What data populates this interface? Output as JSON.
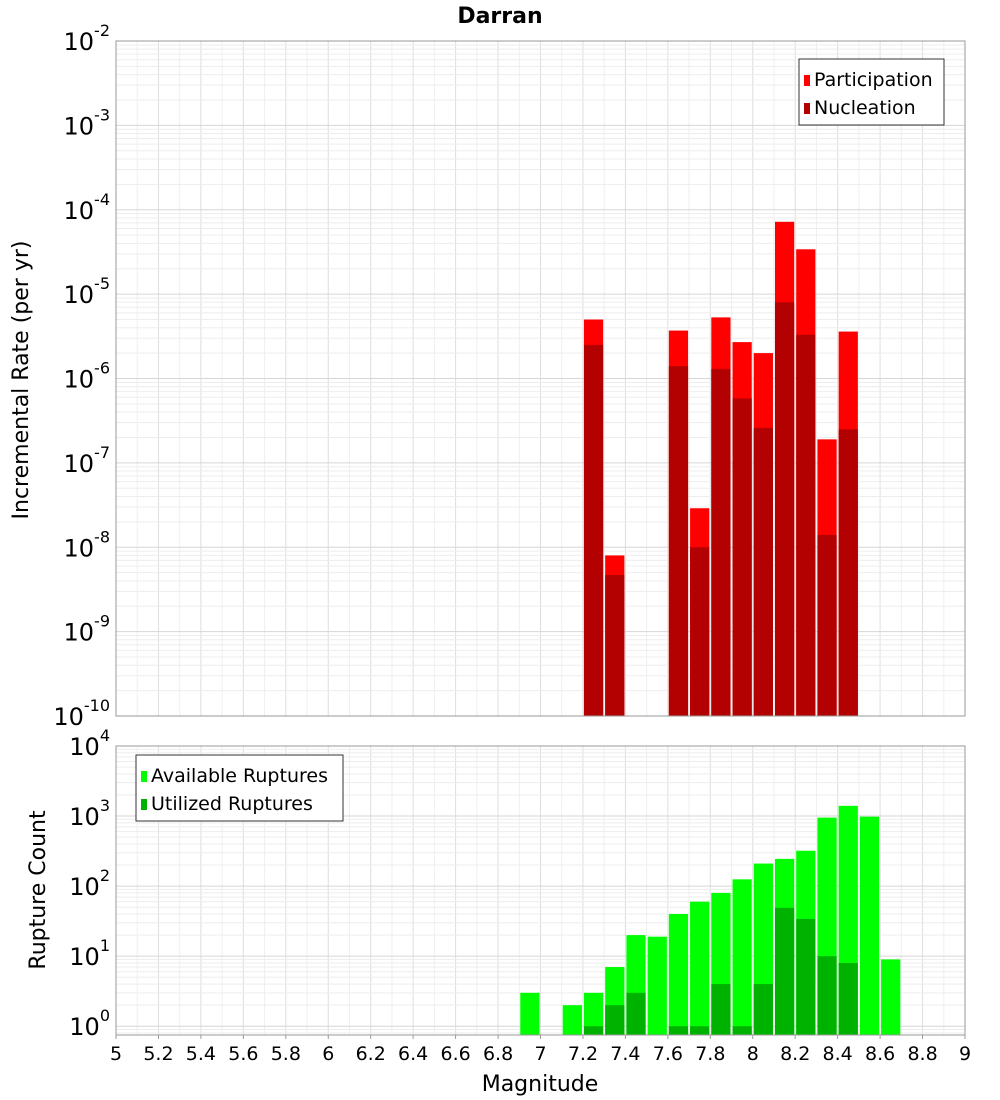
{
  "chart_data": [
    {
      "type": "bar",
      "title": "Darran",
      "xlabel": "",
      "ylabel": "Incremental Rate (per yr)",
      "xlim": [
        5,
        9
      ],
      "ylim": [
        1e-10,
        0.01
      ],
      "yscale": "log",
      "grid": true,
      "legend_position": "top-right",
      "bin_width": 0.1,
      "y_tick_exponents": [
        "-2",
        "-3",
        "-4",
        "-5",
        "-6",
        "-7",
        "-8",
        "-9",
        "-10"
      ],
      "series": [
        {
          "name": "Participation",
          "color": "#ff0000",
          "points": [
            {
              "x": 7.25,
              "y": 5e-06
            },
            {
              "x": 7.35,
              "y": 8e-09
            },
            {
              "x": 7.65,
              "y": 3.7e-06
            },
            {
              "x": 7.75,
              "y": 2.9e-08
            },
            {
              "x": 7.85,
              "y": 5.3e-06
            },
            {
              "x": 7.95,
              "y": 2.7e-06
            },
            {
              "x": 8.05,
              "y": 2e-06
            },
            {
              "x": 8.15,
              "y": 7.2e-05
            },
            {
              "x": 8.25,
              "y": 3.4e-05
            },
            {
              "x": 8.35,
              "y": 1.9e-07
            },
            {
              "x": 8.45,
              "y": 3.6e-06
            }
          ]
        },
        {
          "name": "Nucleation",
          "color": "#b30000",
          "points": [
            {
              "x": 7.25,
              "y": 2.5e-06
            },
            {
              "x": 7.35,
              "y": 4.7e-09
            },
            {
              "x": 7.65,
              "y": 1.4e-06
            },
            {
              "x": 7.75,
              "y": 1e-08
            },
            {
              "x": 7.85,
              "y": 1.3e-06
            },
            {
              "x": 7.95,
              "y": 5.8e-07
            },
            {
              "x": 8.05,
              "y": 2.6e-07
            },
            {
              "x": 8.15,
              "y": 8e-06
            },
            {
              "x": 8.25,
              "y": 3.3e-06
            },
            {
              "x": 8.35,
              "y": 1.4e-08
            },
            {
              "x": 8.45,
              "y": 2.5e-07
            }
          ]
        }
      ]
    },
    {
      "type": "bar",
      "title": "",
      "xlabel": "Magnitude",
      "ylabel": "Rupture Count",
      "xlim": [
        5,
        9
      ],
      "ylim": [
        0.75,
        10000.0
      ],
      "yscale": "log",
      "grid": true,
      "legend_position": "top-left",
      "bin_width": 0.1,
      "y_tick_exponents": [
        "4",
        "3",
        "2",
        "1",
        "0"
      ],
      "x_ticks": [
        "5",
        "5.2",
        "5.4",
        "5.6",
        "5.8",
        "6",
        "6.2",
        "6.4",
        "6.6",
        "6.8",
        "7",
        "7.2",
        "7.4",
        "7.6",
        "7.8",
        "8",
        "8.2",
        "8.4",
        "8.6",
        "8.8",
        "9"
      ],
      "series": [
        {
          "name": "Available Ruptures",
          "color": "#00ff00",
          "points": [
            {
              "x": 6.95,
              "y": 3
            },
            {
              "x": 7.15,
              "y": 2
            },
            {
              "x": 7.25,
              "y": 3
            },
            {
              "x": 7.35,
              "y": 7
            },
            {
              "x": 7.45,
              "y": 20
            },
            {
              "x": 7.55,
              "y": 19
            },
            {
              "x": 7.65,
              "y": 40
            },
            {
              "x": 7.75,
              "y": 60
            },
            {
              "x": 7.85,
              "y": 80
            },
            {
              "x": 7.95,
              "y": 125
            },
            {
              "x": 8.05,
              "y": 210
            },
            {
              "x": 8.15,
              "y": 245
            },
            {
              "x": 8.25,
              "y": 320
            },
            {
              "x": 8.35,
              "y": 950
            },
            {
              "x": 8.45,
              "y": 1400
            },
            {
              "x": 8.55,
              "y": 980
            },
            {
              "x": 8.65,
              "y": 9
            }
          ]
        },
        {
          "name": "Utilized Ruptures",
          "color": "#00b200",
          "points": [
            {
              "x": 7.25,
              "y": 1
            },
            {
              "x": 7.35,
              "y": 2
            },
            {
              "x": 7.45,
              "y": 3
            },
            {
              "x": 7.65,
              "y": 1
            },
            {
              "x": 7.75,
              "y": 1
            },
            {
              "x": 7.85,
              "y": 4
            },
            {
              "x": 7.95,
              "y": 1
            },
            {
              "x": 8.05,
              "y": 4
            },
            {
              "x": 8.15,
              "y": 49
            },
            {
              "x": 8.25,
              "y": 34
            },
            {
              "x": 8.35,
              "y": 10
            },
            {
              "x": 8.45,
              "y": 8
            }
          ]
        }
      ]
    }
  ]
}
